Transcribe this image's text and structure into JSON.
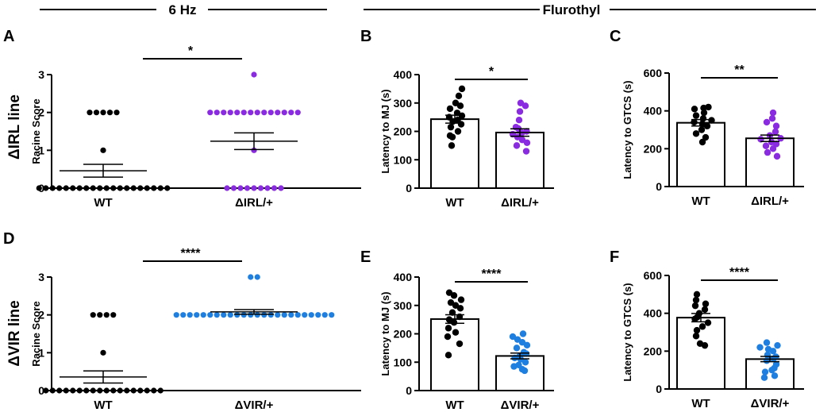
{
  "headers": {
    "left": "6 Hz",
    "right": "Flurothyl"
  },
  "row_labels": {
    "top": "ΔIRL line",
    "bottom": "ΔVIR line"
  },
  "colors": {
    "wt": "#000000",
    "irl": "#8a2be2",
    "vir": "#1e7fe0"
  },
  "chart_data": [
    {
      "panel": "A",
      "type": "scatter",
      "ylabel": "Racine  Score",
      "ylim": [
        0,
        3
      ],
      "yticks": [
        0,
        1,
        2,
        3
      ],
      "categories": [
        "WT",
        "ΔIRL/+"
      ],
      "significance": "*",
      "groups": [
        {
          "name": "WT",
          "color": "#000000",
          "mean": 0.46,
          "sem": 0.17,
          "values": [
            0,
            0,
            0,
            0,
            0,
            0,
            0,
            0,
            0,
            0,
            0,
            0,
            0,
            0,
            0,
            0,
            0,
            0,
            0,
            0,
            1,
            2,
            2,
            2,
            2,
            2
          ]
        },
        {
          "name": "ΔIRL/+",
          "color": "#8a2be2",
          "mean": 1.24,
          "sem": 0.22,
          "values": [
            0,
            0,
            0,
            0,
            0,
            0,
            0,
            0,
            0,
            1,
            2,
            2,
            2,
            2,
            2,
            2,
            2,
            2,
            2,
            2,
            2,
            2,
            2,
            2,
            3
          ]
        }
      ]
    },
    {
      "panel": "B",
      "type": "bar",
      "ylabel": "Latency to MJ  (s)",
      "ylim": [
        0,
        400
      ],
      "yticks": [
        0,
        100,
        200,
        300,
        400
      ],
      "categories": [
        "WT",
        "ΔIRL/+"
      ],
      "significance": "*",
      "groups": [
        {
          "name": "WT",
          "color": "#000000",
          "mean": 243,
          "sem": 14,
          "values": [
            150,
            180,
            185,
            200,
            215,
            225,
            235,
            240,
            250,
            255,
            265,
            280,
            290,
            300,
            325,
            350
          ]
        },
        {
          "name": "ΔIRL/+",
          "color": "#8a2be2",
          "mean": 196,
          "sem": 13,
          "values": [
            130,
            150,
            160,
            170,
            180,
            190,
            195,
            200,
            210,
            215,
            240,
            270,
            290,
            300
          ]
        }
      ]
    },
    {
      "panel": "C",
      "type": "bar",
      "ylabel": "Latency to  GTCS  (s)",
      "ylim": [
        0,
        600
      ],
      "yticks": [
        0,
        200,
        400,
        600
      ],
      "categories": [
        "WT",
        "ΔIRL/+"
      ],
      "significance": "**",
      "groups": [
        {
          "name": "WT",
          "color": "#000000",
          "mean": 337,
          "sem": 17,
          "values": [
            235,
            260,
            280,
            300,
            320,
            330,
            340,
            350,
            360,
            375,
            390,
            410,
            415,
            420
          ]
        },
        {
          "name": "ΔIRL/+",
          "color": "#8a2be2",
          "mean": 255,
          "sem": 17,
          "values": [
            160,
            180,
            200,
            215,
            225,
            235,
            250,
            255,
            270,
            290,
            320,
            340,
            360,
            390
          ]
        }
      ]
    },
    {
      "panel": "D",
      "type": "scatter",
      "ylabel": "Racine  Score",
      "ylim": [
        0,
        3
      ],
      "yticks": [
        0,
        1,
        2,
        3
      ],
      "categories": [
        "WT",
        "ΔVIR/+"
      ],
      "significance": "****",
      "groups": [
        {
          "name": "WT",
          "color": "#000000",
          "mean": 0.36,
          "sem": 0.16,
          "values": [
            0,
            0,
            0,
            0,
            0,
            0,
            0,
            0,
            0,
            0,
            0,
            0,
            0,
            0,
            0,
            0,
            0,
            0,
            1,
            2,
            2,
            2,
            2
          ]
        },
        {
          "name": "ΔVIR/+",
          "color": "#1e7fe0",
          "mean": 2.08,
          "sem": 0.06,
          "values": [
            2,
            2,
            2,
            2,
            2,
            2,
            2,
            2,
            2,
            2,
            2,
            2,
            2,
            2,
            2,
            2,
            2,
            2,
            2,
            2,
            2,
            2,
            2,
            2,
            3,
            3
          ]
        }
      ]
    },
    {
      "panel": "E",
      "type": "bar",
      "ylabel": "Latency to MJ  (s)",
      "ylim": [
        0,
        400
      ],
      "yticks": [
        0,
        100,
        200,
        300,
        400
      ],
      "categories": [
        "WT",
        "ΔVIR/+"
      ],
      "significance": "****",
      "groups": [
        {
          "name": "WT",
          "color": "#000000",
          "mean": 252,
          "sem": 15,
          "values": [
            125,
            165,
            190,
            205,
            220,
            240,
            250,
            260,
            275,
            290,
            300,
            310,
            320,
            335,
            345
          ]
        },
        {
          "name": "ΔVIR/+",
          "color": "#1e7fe0",
          "mean": 122,
          "sem": 10,
          "values": [
            70,
            75,
            85,
            90,
            100,
            110,
            115,
            120,
            130,
            135,
            150,
            160,
            170,
            180,
            190,
            200
          ]
        }
      ]
    },
    {
      "panel": "F",
      "type": "bar",
      "ylabel": "Latency to  GTCS  (s)",
      "ylim": [
        0,
        600
      ],
      "yticks": [
        0,
        200,
        400,
        600
      ],
      "categories": [
        "WT",
        "ΔVIR/+"
      ],
      "significance": "****",
      "groups": [
        {
          "name": "WT",
          "color": "#000000",
          "mean": 377,
          "sem": 22,
          "values": [
            230,
            240,
            280,
            310,
            330,
            350,
            370,
            380,
            400,
            420,
            440,
            450,
            470,
            500
          ]
        },
        {
          "name": "ΔVIR/+",
          "color": "#1e7fe0",
          "mean": 158,
          "sem": 14,
          "values": [
            60,
            70,
            90,
            100,
            110,
            130,
            150,
            160,
            170,
            180,
            200,
            210,
            220,
            230,
            245
          ]
        }
      ]
    }
  ]
}
